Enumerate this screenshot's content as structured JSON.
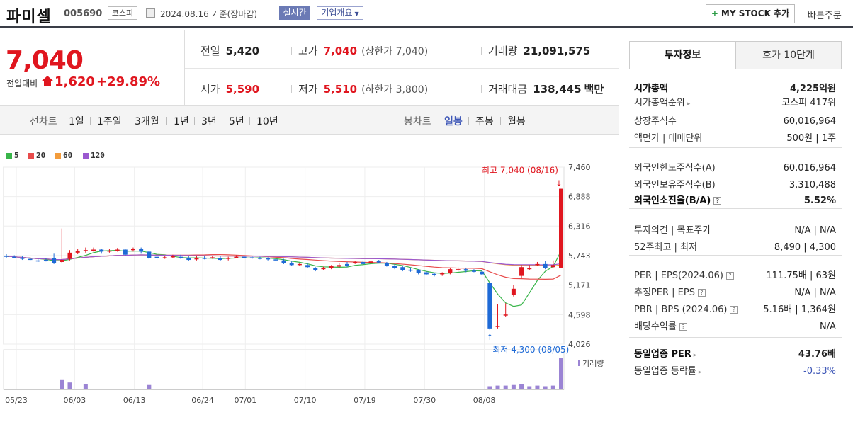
{
  "header": {
    "name": "파미셀",
    "code": "005690",
    "market": "코스피",
    "date": "2024.08.16 기준(장마감)",
    "live_label": "실시간",
    "overview_label": "기업개요",
    "mystock_label": "MY STOCK 추가",
    "quick_order_label": "빠른주문"
  },
  "price": {
    "current": "7,040",
    "change_label": "전일대비",
    "change": "1,620",
    "change_pct": "+29.89%"
  },
  "quotes": {
    "prev_label": "전일",
    "prev": "5,420",
    "high_label": "고가",
    "high": "7,040",
    "high_limit": "(상한가 7,040)",
    "volume_label": "거래량",
    "volume": "21,091,575",
    "open_label": "시가",
    "open": "5,590",
    "low_label": "저가",
    "low": "5,510",
    "low_limit": "(하한가 3,800)",
    "amount_label": "거래대금",
    "amount": "138,445",
    "amount_unit": "백만"
  },
  "period_bar": {
    "line_label": "선차트",
    "line_items": [
      "1일",
      "1주일",
      "3개월",
      "1년",
      "3년",
      "5년",
      "10년"
    ],
    "candle_label": "봉차트",
    "candle_items": [
      "일봉",
      "주봉",
      "월봉"
    ],
    "selected_candle": "일봉"
  },
  "chart_data": {
    "type": "candlestick",
    "legend": [
      {
        "name": "5",
        "color": "#39b54a"
      },
      {
        "name": "20",
        "color": "#e84c4c"
      },
      {
        "name": "60",
        "color": "#f39c3c"
      },
      {
        "name": "120",
        "color": "#9b59d0"
      }
    ],
    "y_ticks": [
      "7,460",
      "6,888",
      "6,316",
      "5,743",
      "5,171",
      "4,598",
      "4,026"
    ],
    "ylim": [
      4026,
      7460
    ],
    "x_ticks": [
      "05/23",
      "06/03",
      "06/13",
      "06/24",
      "07/01",
      "07/10",
      "07/19",
      "07/30",
      "08/08"
    ],
    "max_label": "최고 7,040 (08/16)",
    "min_label": "최저 4,300 (08/05)",
    "volume_label": "거래량",
    "candles": [
      [
        5740,
        5730,
        5770,
        5700
      ],
      [
        5720,
        5710,
        5750,
        5690
      ],
      [
        5700,
        5680,
        5730,
        5660
      ],
      [
        5680,
        5660,
        5700,
        5640
      ],
      [
        5650,
        5640,
        5680,
        5620
      ],
      [
        5660,
        5650,
        5690,
        5630
      ],
      [
        5700,
        5600,
        5780,
        5580
      ],
      [
        5620,
        5660,
        6270,
        5600
      ],
      [
        5680,
        5800,
        5850,
        5650
      ],
      [
        5800,
        5830,
        5880,
        5770
      ],
      [
        5830,
        5850,
        5900,
        5800
      ],
      [
        5840,
        5860,
        5900,
        5820
      ],
      [
        5860,
        5820,
        5880,
        5780
      ],
      [
        5830,
        5840,
        5880,
        5800
      ],
      [
        5840,
        5860,
        5890,
        5820
      ],
      [
        5860,
        5760,
        5880,
        5740
      ],
      [
        5850,
        5870,
        5900,
        5820
      ],
      [
        5870,
        5820,
        5900,
        5780
      ],
      [
        5820,
        5700,
        5840,
        5680
      ],
      [
        5720,
        5690,
        5750,
        5660
      ],
      [
        5700,
        5710,
        5740,
        5680
      ],
      [
        5720,
        5730,
        5760,
        5690
      ],
      [
        5720,
        5700,
        5760,
        5680
      ],
      [
        5700,
        5660,
        5730,
        5640
      ],
      [
        5670,
        5700,
        5730,
        5650
      ],
      [
        5700,
        5690,
        5730,
        5670
      ],
      [
        5700,
        5710,
        5740,
        5680
      ],
      [
        5700,
        5660,
        5730,
        5640
      ],
      [
        5680,
        5700,
        5720,
        5650
      ],
      [
        5710,
        5720,
        5750,
        5690
      ],
      [
        5720,
        5700,
        5760,
        5680
      ],
      [
        5710,
        5700,
        5730,
        5680
      ],
      [
        5700,
        5690,
        5720,
        5670
      ],
      [
        5690,
        5670,
        5710,
        5650
      ],
      [
        5670,
        5660,
        5700,
        5640
      ],
      [
        5650,
        5600,
        5680,
        5580
      ],
      [
        5600,
        5560,
        5630,
        5540
      ],
      [
        5560,
        5580,
        5600,
        5540
      ],
      [
        5560,
        5520,
        5600,
        5500
      ],
      [
        5500,
        5460,
        5520,
        5440
      ],
      [
        5480,
        5510,
        5530,
        5460
      ],
      [
        5500,
        5540,
        5560,
        5480
      ],
      [
        5530,
        5560,
        5600,
        5510
      ],
      [
        5580,
        5540,
        5620,
        5520
      ],
      [
        5600,
        5620,
        5640,
        5580
      ],
      [
        5620,
        5580,
        5650,
        5560
      ],
      [
        5600,
        5630,
        5650,
        5580
      ],
      [
        5640,
        5610,
        5660,
        5590
      ],
      [
        5600,
        5550,
        5620,
        5530
      ],
      [
        5550,
        5500,
        5580,
        5480
      ],
      [
        5520,
        5460,
        5540,
        5440
      ],
      [
        5470,
        5450,
        5500,
        5430
      ],
      [
        5460,
        5400,
        5480,
        5380
      ],
      [
        5420,
        5380,
        5440,
        5360
      ],
      [
        5390,
        5360,
        5410,
        5340
      ],
      [
        5380,
        5400,
        5420,
        5350
      ],
      [
        5400,
        5480,
        5500,
        5380
      ],
      [
        5460,
        5480,
        5520,
        5440
      ],
      [
        5480,
        5450,
        5510,
        5420
      ],
      [
        5450,
        5440,
        5480,
        5420
      ],
      [
        5430,
        5380,
        5470,
        5360
      ],
      [
        5220,
        4330,
        5230,
        4300
      ],
      [
        4360,
        4380,
        4800,
        4330
      ],
      [
        4580,
        4600,
        4820,
        4550
      ],
      [
        4980,
        5100,
        5180,
        4950
      ],
      [
        5350,
        5520,
        5560,
        5300
      ],
      [
        5490,
        5500,
        5560,
        5460
      ],
      [
        5560,
        5580,
        5620,
        5540
      ],
      [
        5580,
        5500,
        5640,
        5480
      ],
      [
        5520,
        5560,
        5650,
        5500
      ],
      [
        5510,
        7040,
        7040,
        5510
      ]
    ],
    "volume": [
      0,
      0,
      0,
      0,
      0,
      0,
      0,
      30,
      20,
      0,
      15,
      0,
      0,
      0,
      0,
      0,
      0,
      0,
      12,
      0,
      0,
      0,
      0,
      0,
      0,
      0,
      0,
      0,
      0,
      0,
      0,
      0,
      0,
      0,
      0,
      0,
      0,
      0,
      0,
      0,
      0,
      0,
      0,
      0,
      0,
      0,
      0,
      0,
      0,
      0,
      0,
      0,
      0,
      0,
      0,
      0,
      0,
      0,
      0,
      0,
      0,
      8,
      10,
      10,
      12,
      15,
      8,
      10,
      8,
      10,
      100
    ]
  },
  "invest_tabs": [
    "투자정보",
    "호가 10단계"
  ],
  "invest_info": [
    {
      "k": "시가총액",
      "v": "4,225억원",
      "bold": true
    },
    {
      "k": "시가총액순위",
      "v": "코스피 417위",
      "arrow": true
    },
    {
      "k": "상장주식수",
      "v": "60,016,964"
    },
    {
      "k": "액면가 | 매매단위",
      "v": "500원 | 1주"
    },
    {
      "k": "외국인한도주식수(A)",
      "v": "60,016,964"
    },
    {
      "k": "외국인보유주식수(B)",
      "v": "3,310,488"
    },
    {
      "k": "외국인소진율(B/A)",
      "v": "5.52%",
      "bold": true,
      "help": true
    },
    {
      "k": "투자의견 | 목표주가",
      "v": "N/A | N/A"
    },
    {
      "k": "52주최고 | 최저",
      "v": "8,490 | 4,300"
    },
    {
      "k": "PER | EPS(2024.06)",
      "v": "111.75배 | 63원",
      "help": true
    },
    {
      "k": "추정PER | EPS",
      "v": "N/A | N/A",
      "help": true
    },
    {
      "k": "PBR | BPS (2024.06)",
      "v": "5.16배 | 1,364원",
      "help": true
    },
    {
      "k": "배당수익률",
      "v": "N/A",
      "help": true
    },
    {
      "k": "동일업종 PER",
      "v": "43.76배",
      "bold": true,
      "arrow": true
    },
    {
      "k": "동일업종 등락률",
      "v": "-0.33%",
      "blue": true,
      "arrow": true
    }
  ]
}
